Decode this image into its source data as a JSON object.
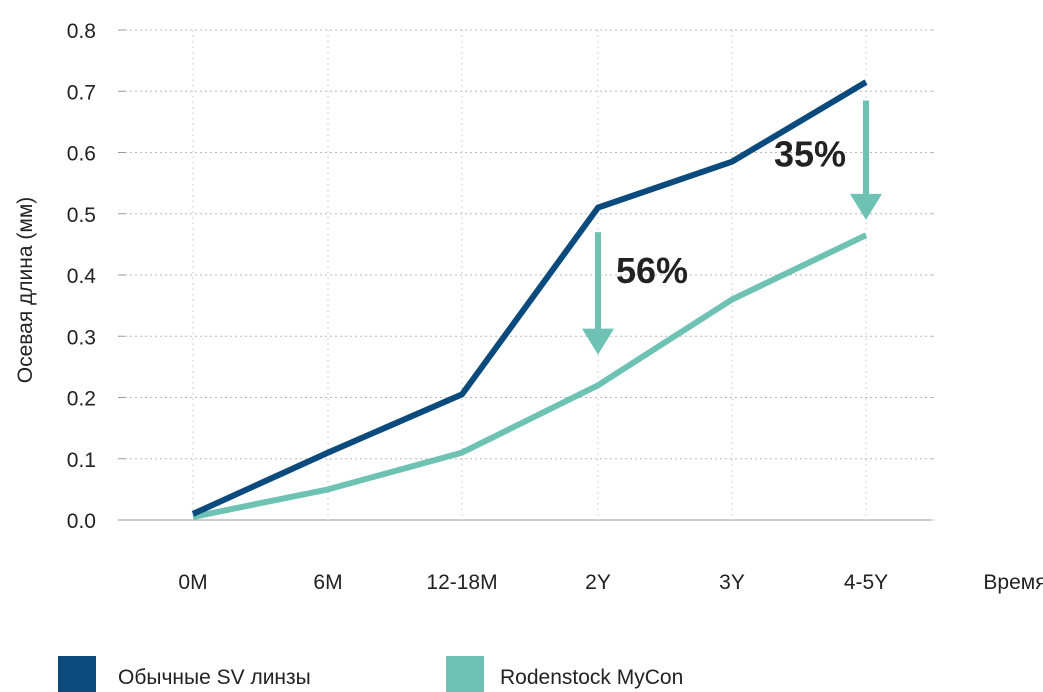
{
  "chart_data": {
    "type": "line",
    "title": "",
    "xlabel": "Время",
    "ylabel": "Осевая длина (мм)",
    "categories": [
      "0M",
      "6M",
      "12-18M",
      "2Y",
      "3Y",
      "4-5Y"
    ],
    "ylim": [
      0,
      0.8
    ],
    "yticks": [
      "0.0",
      "0.1",
      "0.2",
      "0.3",
      "0.4",
      "0.5",
      "0.6",
      "0.7",
      "0.8"
    ],
    "grid": true,
    "legend_position": "bottom",
    "series": [
      {
        "name": "Обычные SV линзы",
        "color": "#0b4a7d",
        "values": [
          0.01,
          0.11,
          0.205,
          0.51,
          0.585,
          0.715
        ]
      },
      {
        "name": "Rodenstock MyCon",
        "color": "#6dc2b4",
        "values": [
          0.005,
          0.05,
          0.11,
          0.22,
          0.36,
          0.465
        ]
      }
    ],
    "annotations": [
      {
        "text": "56%",
        "category": "2Y",
        "from_value": 0.47,
        "to_value": 0.27,
        "color": "#6dc2b4"
      },
      {
        "text": "35%",
        "category": "4-5Y",
        "from_value": 0.685,
        "to_value": 0.49,
        "color": "#6dc2b4"
      }
    ]
  }
}
